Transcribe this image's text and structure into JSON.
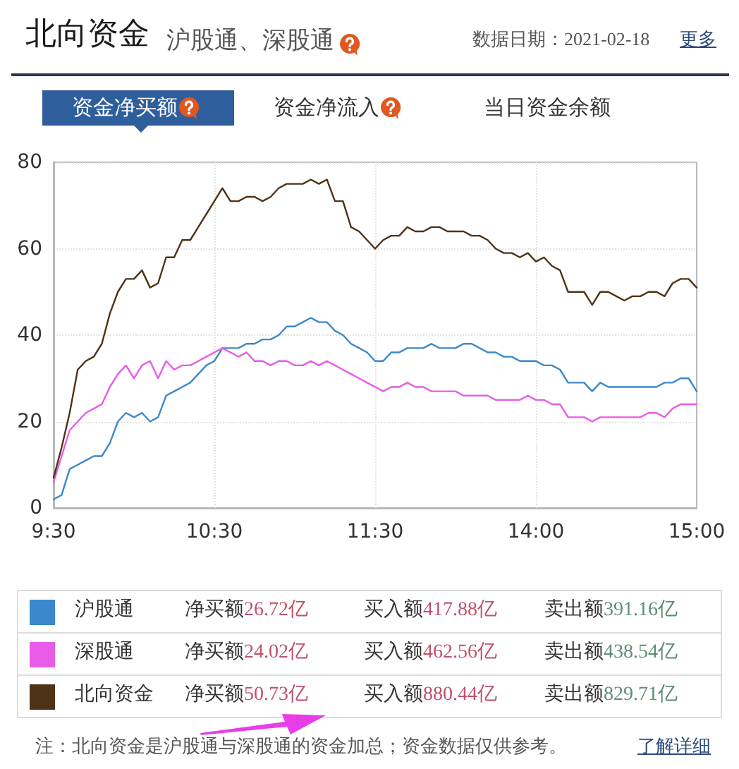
{
  "chart_data": {
    "type": "line",
    "title": "北向资金",
    "subtitle": "沪股通、深股通",
    "categories": [
      "9:30",
      null,
      null,
      null,
      null,
      null,
      null,
      null,
      null,
      null,
      null,
      null,
      null,
      null,
      null,
      null,
      null,
      null,
      null,
      null,
      "10:30",
      null,
      null,
      null,
      null,
      null,
      null,
      null,
      null,
      null,
      null,
      null,
      null,
      null,
      null,
      null,
      null,
      null,
      null,
      null,
      "11:30",
      null,
      null,
      null,
      null,
      null,
      null,
      null,
      null,
      null,
      null,
      null,
      null,
      null,
      null,
      null,
      null,
      null,
      null,
      null,
      "14:00",
      null,
      null,
      null,
      null,
      null,
      null,
      null,
      null,
      null,
      null,
      null,
      null,
      null,
      null,
      null,
      null,
      null,
      null,
      null,
      "15:00"
    ],
    "series": [
      {
        "name": "沪股通",
        "color": "#3c88cc",
        "values": [
          2,
          3,
          9,
          10,
          11,
          12,
          12,
          15,
          20,
          22,
          21,
          22,
          20,
          21,
          26,
          27,
          28,
          29,
          31,
          33,
          34,
          37,
          37,
          37,
          38,
          38,
          39,
          39,
          40,
          42,
          42,
          43,
          44,
          43,
          43,
          41,
          40,
          38,
          37,
          36,
          34,
          34,
          36,
          36,
          37,
          37,
          37,
          38,
          37,
          37,
          37,
          38,
          38,
          37,
          36,
          36,
          35,
          35,
          34,
          34,
          34,
          33,
          33,
          32,
          29,
          29,
          29,
          27,
          29,
          28,
          28,
          28,
          28,
          28,
          28,
          28,
          29,
          29,
          30,
          30,
          27
        ]
      },
      {
        "name": "深股通",
        "color": "#e85ce8",
        "values": [
          6,
          12,
          18,
          20,
          22,
          23,
          24,
          28,
          31,
          33,
          30,
          33,
          34,
          30,
          34,
          32,
          33,
          33,
          34,
          35,
          36,
          37,
          36,
          35,
          36,
          34,
          34,
          33,
          34,
          34,
          33,
          33,
          34,
          33,
          34,
          33,
          32,
          31,
          30,
          29,
          28,
          27,
          28,
          28,
          29,
          28,
          28,
          27,
          27,
          27,
          27,
          26,
          26,
          26,
          26,
          25,
          25,
          25,
          25,
          26,
          25,
          25,
          24,
          24,
          21,
          21,
          21,
          20,
          21,
          21,
          21,
          21,
          21,
          21,
          22,
          22,
          21,
          23,
          24,
          24,
          24
        ]
      },
      {
        "name": "北向资金",
        "color": "#4e3318",
        "values": [
          7,
          14,
          22,
          32,
          34,
          35,
          38,
          45,
          50,
          53,
          53,
          55,
          51,
          52,
          58,
          58,
          62,
          62,
          65,
          68,
          71,
          74,
          71,
          71,
          72,
          72,
          71,
          72,
          74,
          75,
          75,
          75,
          76,
          75,
          76,
          71,
          71,
          65,
          64,
          62,
          60,
          62,
          63,
          63,
          65,
          64,
          64,
          65,
          65,
          64,
          64,
          64,
          63,
          63,
          62,
          60,
          59,
          59,
          58,
          59,
          57,
          58,
          56,
          55,
          50,
          50,
          50,
          47,
          50,
          50,
          49,
          48,
          49,
          49,
          50,
          50,
          49,
          52,
          53,
          53,
          51
        ]
      }
    ],
    "ylim": [
      0,
      80
    ],
    "yticks": [
      0,
      20,
      40,
      60,
      80
    ],
    "grid": true,
    "legend": "bottom",
    "marker": "none",
    "line_style": "solid",
    "annotations": [
      "数据日期：2021-02-18",
      "更多",
      "资金净买额",
      "资金净流入",
      "当日资金余额",
      "净买额26.72亿",
      "买入额417.88亿",
      "卖出额391.16亿",
      "净买额24.02亿",
      "买入额462.56亿",
      "卖出额438.54亿",
      "净买额50.73亿",
      "买入额880.44亿",
      "卖出额829.71亿",
      "注：北向资金是沪股通与深股通的资金加总；资金数据仅供参考。",
      "了解详细"
    ]
  }
}
